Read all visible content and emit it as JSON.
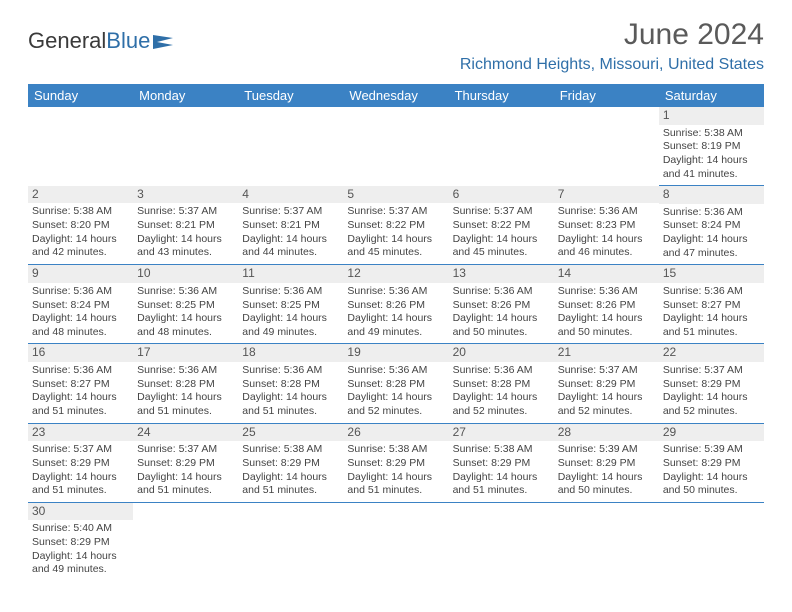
{
  "logo": {
    "text_left": "General",
    "text_right": "Blue"
  },
  "title": "June 2024",
  "location": "Richmond Heights, Missouri, United States",
  "colors": {
    "header_bg": "#3b82c4",
    "header_text": "#ffffff",
    "accent": "#2f6fa8",
    "daynum_bg": "#eeeeee",
    "grid_line": "#3b82c4",
    "body_text": "#444444"
  },
  "weekdays": [
    "Sunday",
    "Monday",
    "Tuesday",
    "Wednesday",
    "Thursday",
    "Friday",
    "Saturday"
  ],
  "first_weekday_index": 6,
  "days": [
    {
      "n": 1,
      "sunrise": "Sunrise: 5:38 AM",
      "sunset": "Sunset: 8:19 PM",
      "daylight": "Daylight: 14 hours and 41 minutes."
    },
    {
      "n": 2,
      "sunrise": "Sunrise: 5:38 AM",
      "sunset": "Sunset: 8:20 PM",
      "daylight": "Daylight: 14 hours and 42 minutes."
    },
    {
      "n": 3,
      "sunrise": "Sunrise: 5:37 AM",
      "sunset": "Sunset: 8:21 PM",
      "daylight": "Daylight: 14 hours and 43 minutes."
    },
    {
      "n": 4,
      "sunrise": "Sunrise: 5:37 AM",
      "sunset": "Sunset: 8:21 PM",
      "daylight": "Daylight: 14 hours and 44 minutes."
    },
    {
      "n": 5,
      "sunrise": "Sunrise: 5:37 AM",
      "sunset": "Sunset: 8:22 PM",
      "daylight": "Daylight: 14 hours and 45 minutes."
    },
    {
      "n": 6,
      "sunrise": "Sunrise: 5:37 AM",
      "sunset": "Sunset: 8:22 PM",
      "daylight": "Daylight: 14 hours and 45 minutes."
    },
    {
      "n": 7,
      "sunrise": "Sunrise: 5:36 AM",
      "sunset": "Sunset: 8:23 PM",
      "daylight": "Daylight: 14 hours and 46 minutes."
    },
    {
      "n": 8,
      "sunrise": "Sunrise: 5:36 AM",
      "sunset": "Sunset: 8:24 PM",
      "daylight": "Daylight: 14 hours and 47 minutes."
    },
    {
      "n": 9,
      "sunrise": "Sunrise: 5:36 AM",
      "sunset": "Sunset: 8:24 PM",
      "daylight": "Daylight: 14 hours and 48 minutes."
    },
    {
      "n": 10,
      "sunrise": "Sunrise: 5:36 AM",
      "sunset": "Sunset: 8:25 PM",
      "daylight": "Daylight: 14 hours and 48 minutes."
    },
    {
      "n": 11,
      "sunrise": "Sunrise: 5:36 AM",
      "sunset": "Sunset: 8:25 PM",
      "daylight": "Daylight: 14 hours and 49 minutes."
    },
    {
      "n": 12,
      "sunrise": "Sunrise: 5:36 AM",
      "sunset": "Sunset: 8:26 PM",
      "daylight": "Daylight: 14 hours and 49 minutes."
    },
    {
      "n": 13,
      "sunrise": "Sunrise: 5:36 AM",
      "sunset": "Sunset: 8:26 PM",
      "daylight": "Daylight: 14 hours and 50 minutes."
    },
    {
      "n": 14,
      "sunrise": "Sunrise: 5:36 AM",
      "sunset": "Sunset: 8:26 PM",
      "daylight": "Daylight: 14 hours and 50 minutes."
    },
    {
      "n": 15,
      "sunrise": "Sunrise: 5:36 AM",
      "sunset": "Sunset: 8:27 PM",
      "daylight": "Daylight: 14 hours and 51 minutes."
    },
    {
      "n": 16,
      "sunrise": "Sunrise: 5:36 AM",
      "sunset": "Sunset: 8:27 PM",
      "daylight": "Daylight: 14 hours and 51 minutes."
    },
    {
      "n": 17,
      "sunrise": "Sunrise: 5:36 AM",
      "sunset": "Sunset: 8:28 PM",
      "daylight": "Daylight: 14 hours and 51 minutes."
    },
    {
      "n": 18,
      "sunrise": "Sunrise: 5:36 AM",
      "sunset": "Sunset: 8:28 PM",
      "daylight": "Daylight: 14 hours and 51 minutes."
    },
    {
      "n": 19,
      "sunrise": "Sunrise: 5:36 AM",
      "sunset": "Sunset: 8:28 PM",
      "daylight": "Daylight: 14 hours and 52 minutes."
    },
    {
      "n": 20,
      "sunrise": "Sunrise: 5:36 AM",
      "sunset": "Sunset: 8:28 PM",
      "daylight": "Daylight: 14 hours and 52 minutes."
    },
    {
      "n": 21,
      "sunrise": "Sunrise: 5:37 AM",
      "sunset": "Sunset: 8:29 PM",
      "daylight": "Daylight: 14 hours and 52 minutes."
    },
    {
      "n": 22,
      "sunrise": "Sunrise: 5:37 AM",
      "sunset": "Sunset: 8:29 PM",
      "daylight": "Daylight: 14 hours and 52 minutes."
    },
    {
      "n": 23,
      "sunrise": "Sunrise: 5:37 AM",
      "sunset": "Sunset: 8:29 PM",
      "daylight": "Daylight: 14 hours and 51 minutes."
    },
    {
      "n": 24,
      "sunrise": "Sunrise: 5:37 AM",
      "sunset": "Sunset: 8:29 PM",
      "daylight": "Daylight: 14 hours and 51 minutes."
    },
    {
      "n": 25,
      "sunrise": "Sunrise: 5:38 AM",
      "sunset": "Sunset: 8:29 PM",
      "daylight": "Daylight: 14 hours and 51 minutes."
    },
    {
      "n": 26,
      "sunrise": "Sunrise: 5:38 AM",
      "sunset": "Sunset: 8:29 PM",
      "daylight": "Daylight: 14 hours and 51 minutes."
    },
    {
      "n": 27,
      "sunrise": "Sunrise: 5:38 AM",
      "sunset": "Sunset: 8:29 PM",
      "daylight": "Daylight: 14 hours and 51 minutes."
    },
    {
      "n": 28,
      "sunrise": "Sunrise: 5:39 AM",
      "sunset": "Sunset: 8:29 PM",
      "daylight": "Daylight: 14 hours and 50 minutes."
    },
    {
      "n": 29,
      "sunrise": "Sunrise: 5:39 AM",
      "sunset": "Sunset: 8:29 PM",
      "daylight": "Daylight: 14 hours and 50 minutes."
    },
    {
      "n": 30,
      "sunrise": "Sunrise: 5:40 AM",
      "sunset": "Sunset: 8:29 PM",
      "daylight": "Daylight: 14 hours and 49 minutes."
    }
  ]
}
